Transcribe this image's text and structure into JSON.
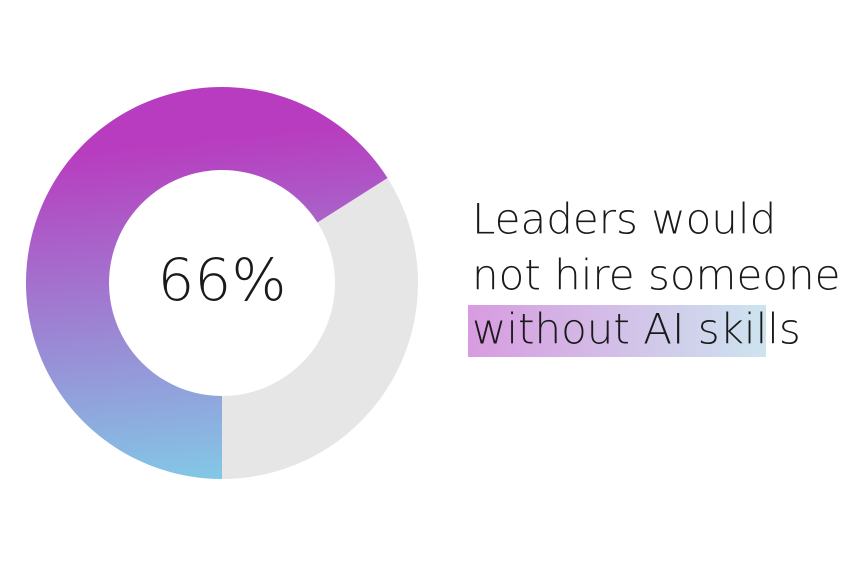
{
  "chart_data": {
    "type": "donut",
    "values": [
      66
    ],
    "value_labels": [
      "66%"
    ],
    "colors": [
      "#b83cbf",
      "#83c7e6"
    ],
    "remainder_color": "#e6e6e6",
    "caption": [
      "Leaders would",
      "not hire someone",
      "without AI skills"
    ]
  }
}
